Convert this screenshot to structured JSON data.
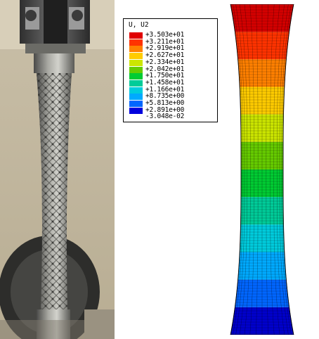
{
  "legend": {
    "title": "U, U2",
    "entries": [
      {
        "label": "+3.503e+01",
        "color": "#e00000"
      },
      {
        "label": "+3.211e+01",
        "color": "#ff3300"
      },
      {
        "label": "+2.919e+01",
        "color": "#ff8000"
      },
      {
        "label": "+2.627e+01",
        "color": "#ffcc00"
      },
      {
        "label": "+2.334e+01",
        "color": "#cce600"
      },
      {
        "label": "+2.042e+01",
        "color": "#66cc00"
      },
      {
        "label": "+1.750e+01",
        "color": "#00cc33"
      },
      {
        "label": "+1.458e+01",
        "color": "#00cc99"
      },
      {
        "label": "+1.166e+01",
        "color": "#00ccdd"
      },
      {
        "label": "+8.735e+00",
        "color": "#00aaff"
      },
      {
        "label": "+5.813e+00",
        "color": "#0066ff"
      },
      {
        "label": "+2.891e+00",
        "color": "#0000dd"
      },
      {
        "label": "-3.048e-02",
        "color": ""
      }
    ]
  },
  "model": {
    "band_colors": [
      "#d40000",
      "#ff3300",
      "#ff8000",
      "#ffcc00",
      "#cce600",
      "#66cc00",
      "#00cc33",
      "#00cc99",
      "#00ccdd",
      "#00aaff",
      "#0066ff",
      "#0000cc"
    ]
  }
}
